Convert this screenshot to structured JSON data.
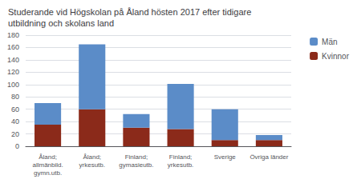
{
  "chart_data": {
    "type": "bar",
    "title": "Studerande vid Högskolan på Åland hösten 2017 efter tidigare\nutbildning och skolans land",
    "categories": [
      "Åland;\nallmänbild.\ngymn.utb.",
      "Åland;\nyrkesutb.",
      "Finland;\ngymasieutb.",
      "Finland;\nyrkesutb.",
      "Sverige",
      "Övriga länder"
    ],
    "series": [
      {
        "name": "Kvinnor",
        "color": "#8B2A1A",
        "values": [
          35,
          60,
          30,
          28,
          10,
          10
        ]
      },
      {
        "name": "Män",
        "color": "#5B8CC8",
        "values": [
          35,
          105,
          22,
          73,
          50,
          8
        ]
      }
    ],
    "stacked": true,
    "ylim": [
      0,
      180
    ],
    "yticks": [
      0,
      20,
      40,
      60,
      80,
      100,
      120,
      140,
      160,
      180
    ],
    "grid": true,
    "legend": "right"
  }
}
